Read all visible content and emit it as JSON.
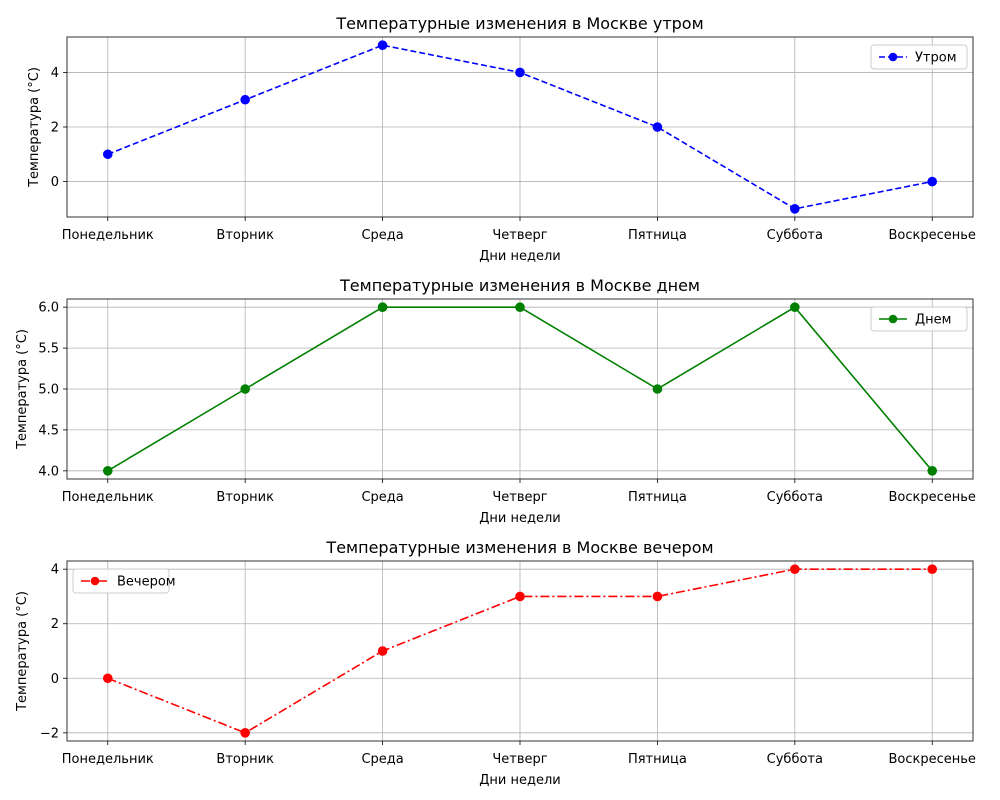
{
  "chart_data": [
    {
      "type": "line",
      "title": "Температурные изменения в Москве утром",
      "xlabel": "Дни недели",
      "ylabel": "Температура (°C)",
      "categories": [
        "Понедельник",
        "Вторник",
        "Среда",
        "Четверг",
        "Пятница",
        "Суббота",
        "Воскресенье"
      ],
      "series": [
        {
          "name": "Утром",
          "values": [
            1,
            3,
            5,
            4,
            2,
            -1,
            0
          ],
          "color": "#0000ff",
          "line_style": "dashed",
          "marker": "circle"
        }
      ],
      "ylim": [
        -1.3,
        5.3
      ],
      "yticks": [
        0,
        2,
        4
      ],
      "ytick_labels": [
        "0",
        "2",
        "4"
      ],
      "grid": true,
      "legend_position": "upper right"
    },
    {
      "type": "line",
      "title": "Температурные изменения в Москве днем",
      "xlabel": "Дни недели",
      "ylabel": "Температура (°C)",
      "categories": [
        "Понедельник",
        "Вторник",
        "Среда",
        "Четверг",
        "Пятница",
        "Суббота",
        "Воскресенье"
      ],
      "series": [
        {
          "name": "Днем",
          "values": [
            4,
            5,
            6,
            6,
            5,
            6,
            4
          ],
          "color": "#008000",
          "line_style": "solid",
          "marker": "circle"
        }
      ],
      "ylim": [
        3.9,
        6.1
      ],
      "yticks": [
        4.0,
        4.5,
        5.0,
        5.5,
        6.0
      ],
      "ytick_labels": [
        "4.0",
        "4.5",
        "5.0",
        "5.5",
        "6.0"
      ],
      "grid": true,
      "legend_position": "upper right"
    },
    {
      "type": "line",
      "title": "Температурные изменения в Москве вечером",
      "xlabel": "Дни недели",
      "ylabel": "Температура (°C)",
      "categories": [
        "Понедельник",
        "Вторник",
        "Среда",
        "Четверг",
        "Пятница",
        "Суббота",
        "Воскресенье"
      ],
      "series": [
        {
          "name": "Вечером",
          "values": [
            0,
            -2,
            1,
            3,
            3,
            4,
            4
          ],
          "color": "#ff0000",
          "line_style": "dashdot",
          "marker": "circle"
        }
      ],
      "ylim": [
        -2.3,
        4.3
      ],
      "yticks": [
        -2,
        0,
        2,
        4
      ],
      "ytick_labels": [
        "−2",
        "0",
        "2",
        "4"
      ],
      "grid": true,
      "legend_position": "upper left"
    }
  ]
}
